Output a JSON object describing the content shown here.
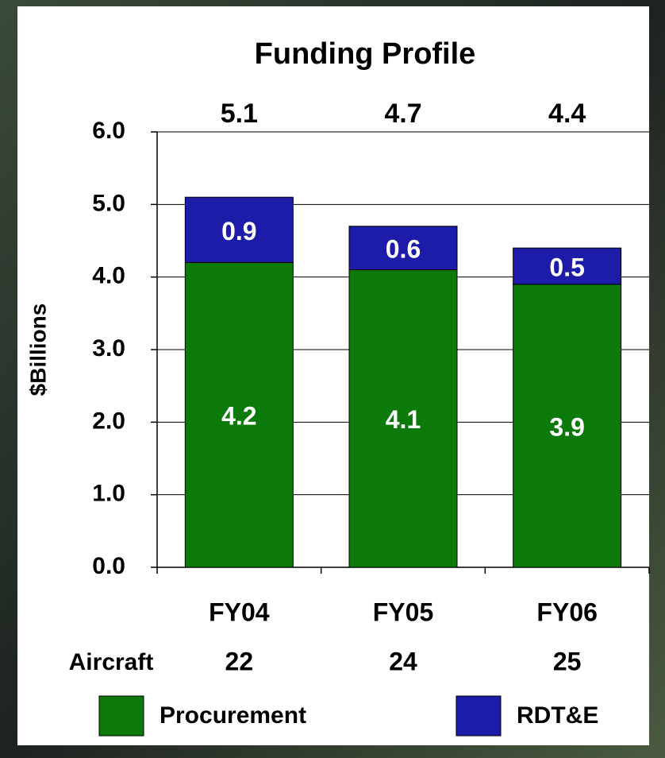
{
  "chart_data": {
    "type": "stacked_bar",
    "title": "Funding Profile",
    "y_label": "$Billions",
    "categories": [
      "FY04",
      "FY05",
      "FY06"
    ],
    "series": [
      {
        "name": "Procurement",
        "color": "#0b7a0b",
        "values": [
          4.2,
          4.1,
          3.9
        ]
      },
      {
        "name": "RDT&E",
        "color": "#1c1ca8",
        "values": [
          0.9,
          0.6,
          0.5
        ]
      }
    ],
    "totals": [
      5.1,
      4.7,
      4.4
    ],
    "aircraft": {
      "label": "Aircraft",
      "values": [
        22,
        24,
        25
      ]
    },
    "ylim": [
      0,
      6
    ],
    "yticks": [
      {
        "value": 0,
        "label": "0.0"
      },
      {
        "value": 1,
        "label": "1.0"
      },
      {
        "value": 2,
        "label": "2.0"
      },
      {
        "value": 3,
        "label": "3.0"
      },
      {
        "value": 4,
        "label": "4.0"
      },
      {
        "value": 5,
        "label": "5.0"
      },
      {
        "value": 6,
        "label": "6.0"
      }
    ],
    "grid": true
  }
}
